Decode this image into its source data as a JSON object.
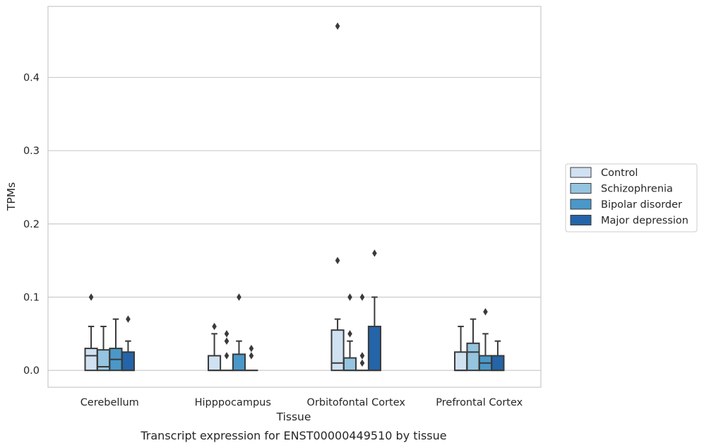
{
  "caption": "Transcript expression for ENST00000449510 by tissue",
  "chart_data": {
    "type": "boxplot",
    "title": "",
    "xlabel": "Tissue",
    "ylabel": "TPMs",
    "ylim": [
      -0.023,
      0.497
    ],
    "yticks": [
      "0.0",
      "0.1",
      "0.2",
      "0.3",
      "0.4"
    ],
    "grid": "horizontal",
    "legend_placement": "right",
    "categories": [
      "Cerebellum",
      "Hipppocampus",
      "Orbitofontal Cortex",
      "Prefrontal Cortex"
    ],
    "series": [
      {
        "name": "Control",
        "color": "#d0e1f2",
        "boxes": [
          {
            "whislo": 0.0,
            "q1": 0.0,
            "med": 0.02,
            "q3": 0.03,
            "whishi": 0.06,
            "fliers": [
              0.1
            ]
          },
          {
            "whislo": 0.0,
            "q1": 0.0,
            "med": 0.0,
            "q3": 0.02,
            "whishi": 0.05,
            "fliers": [
              0.06
            ]
          },
          {
            "whislo": 0.0,
            "q1": 0.0,
            "med": 0.01,
            "q3": 0.055,
            "whishi": 0.07,
            "fliers": [
              0.15,
              0.47
            ]
          },
          {
            "whislo": 0.0,
            "q1": 0.0,
            "med": 0.0,
            "q3": 0.025,
            "whishi": 0.06,
            "fliers": []
          }
        ]
      },
      {
        "name": "Schizophrenia",
        "color": "#94c4df",
        "boxes": [
          {
            "whislo": 0.0,
            "q1": 0.0,
            "med": 0.005,
            "q3": 0.028,
            "whishi": 0.06,
            "fliers": []
          },
          {
            "whislo": 0.0,
            "q1": 0.0,
            "med": 0.0,
            "q3": 0.0,
            "whishi": 0.0,
            "fliers": [
              0.02,
              0.04,
              0.05
            ]
          },
          {
            "whislo": 0.0,
            "q1": 0.0,
            "med": 0.0,
            "q3": 0.017,
            "whishi": 0.04,
            "fliers": [
              0.05,
              0.1
            ]
          },
          {
            "whislo": 0.0,
            "q1": 0.0,
            "med": 0.025,
            "q3": 0.037,
            "whishi": 0.07,
            "fliers": []
          }
        ]
      },
      {
        "name": "Bipolar disorder",
        "color": "#4a98c9",
        "boxes": [
          {
            "whislo": 0.0,
            "q1": 0.0,
            "med": 0.015,
            "q3": 0.03,
            "whishi": 0.07,
            "fliers": []
          },
          {
            "whislo": 0.0,
            "q1": 0.0,
            "med": 0.0,
            "q3": 0.022,
            "whishi": 0.04,
            "fliers": [
              0.1
            ]
          },
          {
            "whislo": 0.0,
            "q1": 0.0,
            "med": 0.0,
            "q3": 0.0,
            "whishi": 0.0,
            "fliers": [
              0.01,
              0.02,
              0.1
            ]
          },
          {
            "whislo": 0.0,
            "q1": 0.0,
            "med": 0.01,
            "q3": 0.02,
            "whishi": 0.05,
            "fliers": [
              0.08
            ]
          }
        ]
      },
      {
        "name": "Major depression",
        "color": "#2464a8",
        "boxes": [
          {
            "whislo": 0.0,
            "q1": 0.0,
            "med": 0.0,
            "q3": 0.025,
            "whishi": 0.04,
            "fliers": [
              0.07
            ]
          },
          {
            "whislo": 0.0,
            "q1": 0.0,
            "med": 0.0,
            "q3": 0.0,
            "whishi": 0.0,
            "fliers": [
              0.02,
              0.03
            ]
          },
          {
            "whislo": 0.0,
            "q1": 0.0,
            "med": 0.0,
            "q3": 0.06,
            "whishi": 0.1,
            "fliers": [
              0.16
            ]
          },
          {
            "whislo": 0.0,
            "q1": 0.0,
            "med": 0.0,
            "q3": 0.02,
            "whishi": 0.04,
            "fliers": []
          }
        ]
      }
    ]
  },
  "colors": {
    "grid": "#cccccc",
    "frame": "#cccccc",
    "edge": "#3a3a3a",
    "text": "#262626"
  }
}
